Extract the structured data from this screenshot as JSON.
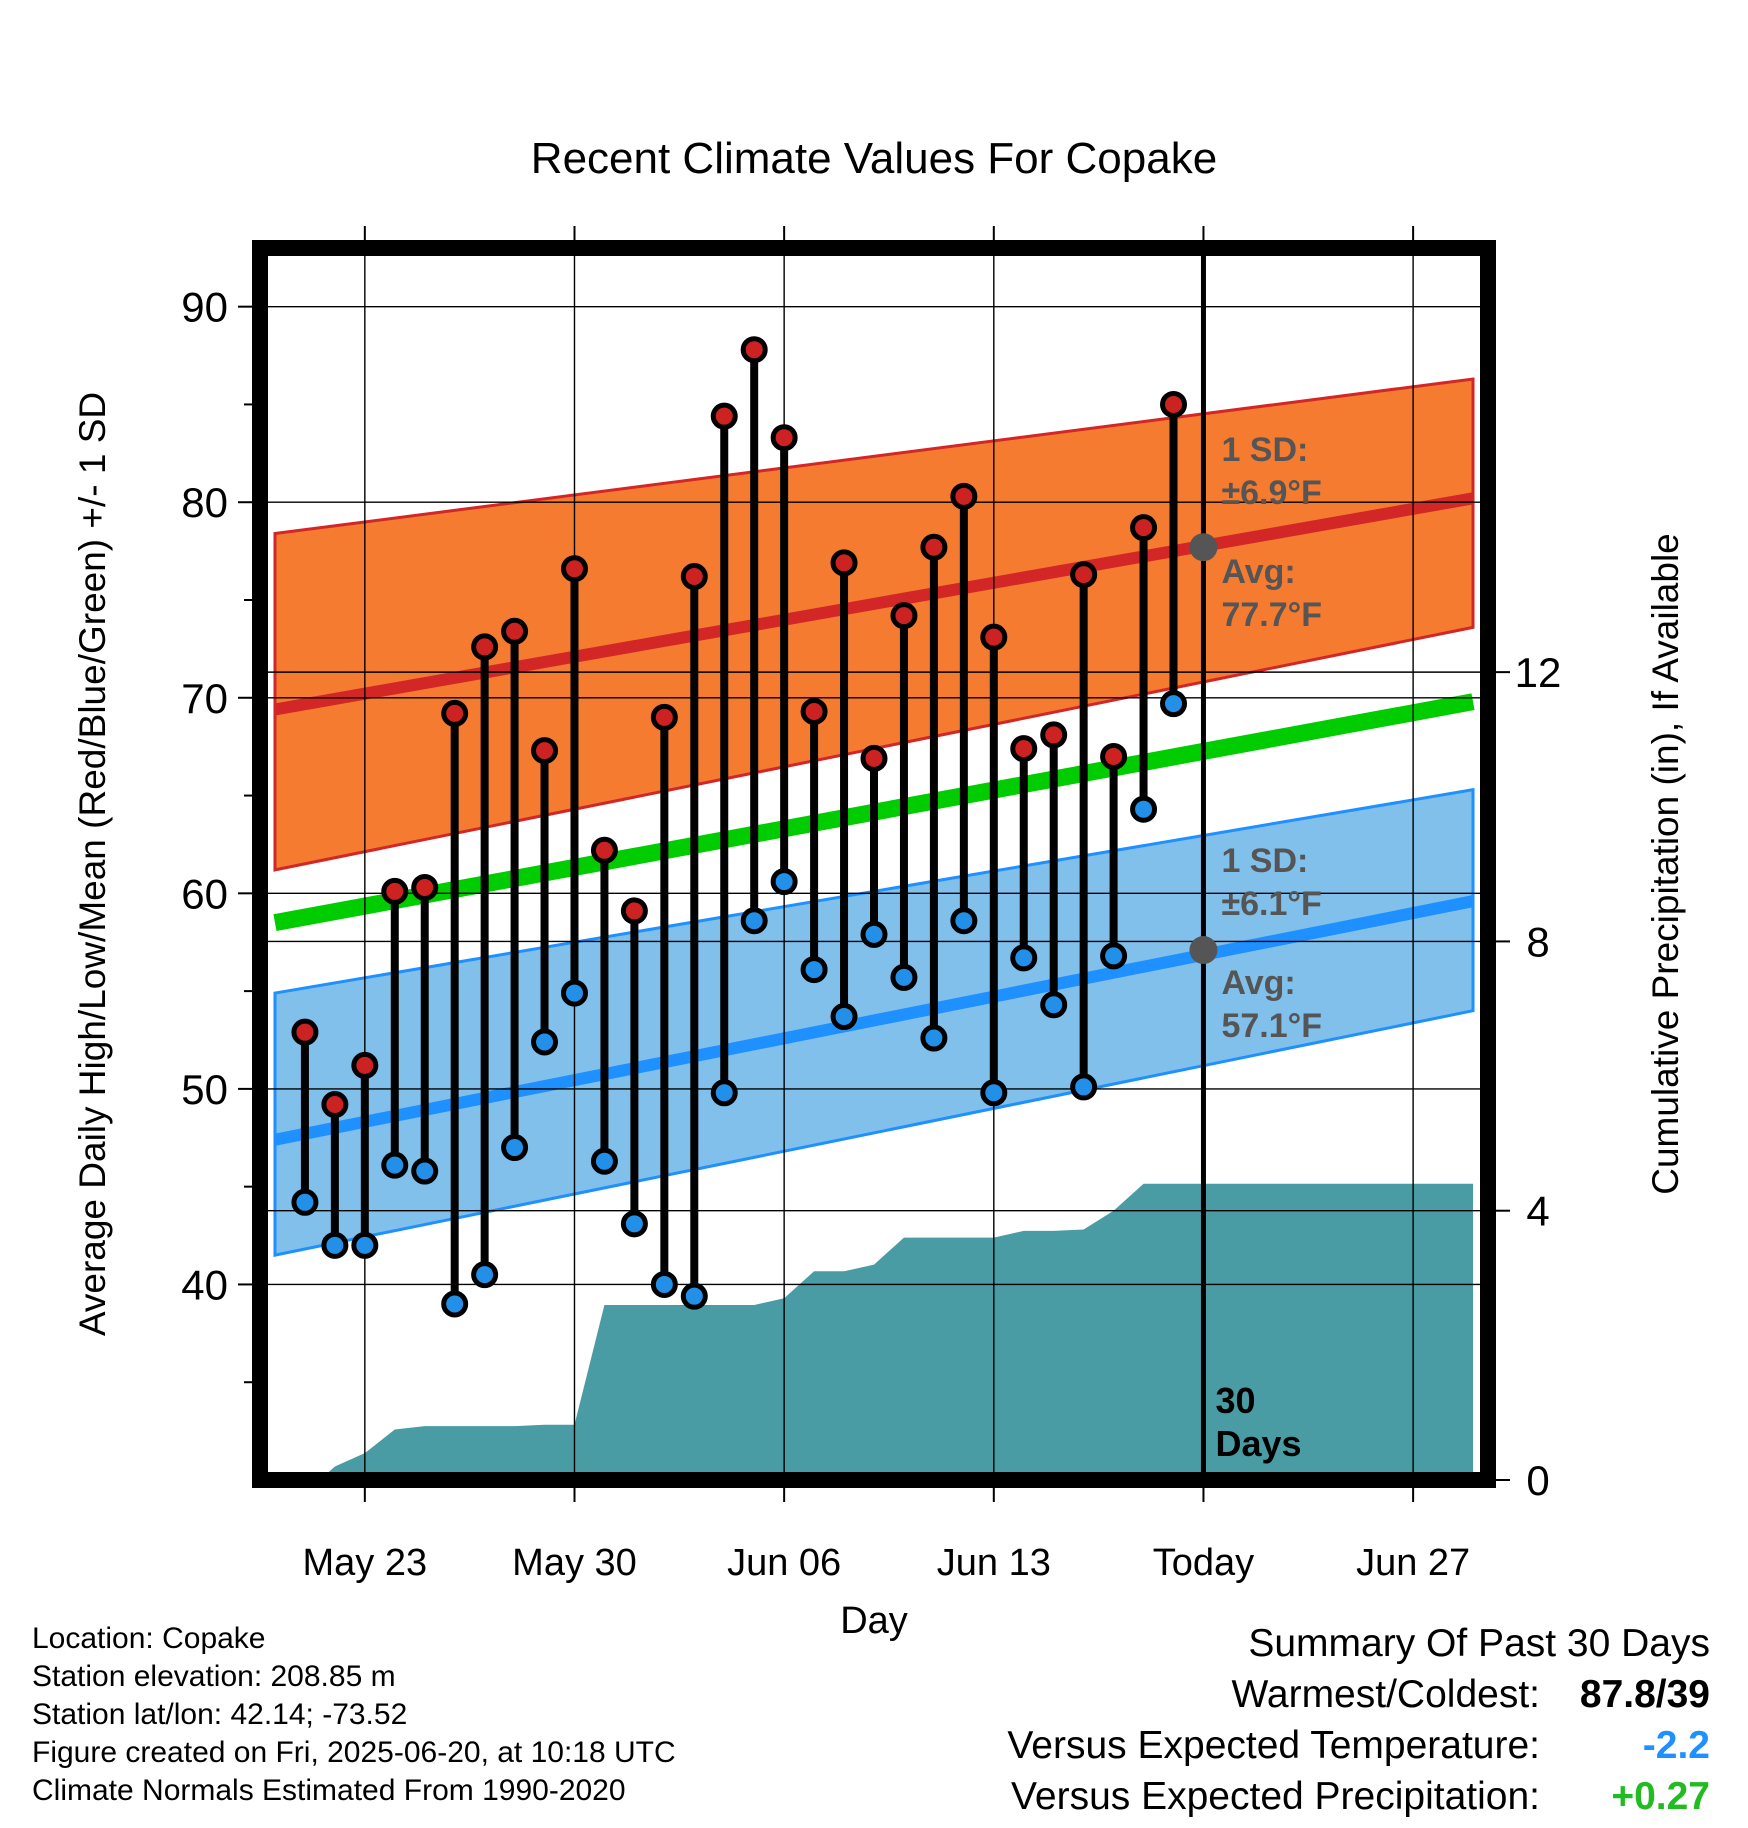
{
  "chart_data": {
    "type": "line",
    "title": "Recent Climate Values For Copake",
    "xlabel": "Day",
    "ylabel": "Average Daily High/Low/Mean (Red/Blue/Green) +/- 1 SD",
    "y2label": "Cumulative Precipitation (in), If Available",
    "ylim": [
      30,
      93
    ],
    "y2lim": [
      0,
      18.3
    ],
    "xlim": [
      -3.5,
      37.5
    ],
    "x_ticks": [
      {
        "x": 0,
        "label": "May 23"
      },
      {
        "x": 7,
        "label": "May 30"
      },
      {
        "x": 14,
        "label": "Jun 06"
      },
      {
        "x": 21,
        "label": "Jun 13"
      },
      {
        "x": 28,
        "label": "Today"
      },
      {
        "x": 35,
        "label": "Jun 27"
      }
    ],
    "y_ticks": [
      40,
      50,
      60,
      70,
      80,
      90
    ],
    "y2_ticks": [
      0,
      4,
      8,
      12
    ],
    "grid": true,
    "days": [
      -2,
      -1,
      0,
      1,
      2,
      3,
      4,
      5,
      6,
      7,
      8,
      9,
      10,
      11,
      12,
      13,
      14,
      15,
      16,
      17,
      18,
      19,
      20,
      21,
      22,
      23,
      24,
      25,
      26,
      27
    ],
    "highs": [
      52.9,
      49.2,
      51.2,
      60.1,
      60.3,
      69.2,
      72.6,
      73.4,
      67.3,
      76.6,
      62.2,
      59.1,
      69.0,
      76.2,
      84.4,
      87.8,
      83.3,
      69.3,
      76.9,
      66.9,
      74.2,
      77.7,
      80.3,
      73.1,
      67.4,
      68.1,
      76.3,
      67.0,
      78.7,
      85.0
    ],
    "lows": [
      44.2,
      42.0,
      42.0,
      46.1,
      45.8,
      39.0,
      40.5,
      47.0,
      52.4,
      54.9,
      46.3,
      43.1,
      40.0,
      39.4,
      49.8,
      58.6,
      60.6,
      56.1,
      53.7,
      57.9,
      55.7,
      52.6,
      58.6,
      49.8,
      56.7,
      54.3,
      50.1,
      56.8,
      64.3,
      69.7
    ],
    "normals": {
      "x": [
        -3,
        37
      ],
      "high_avg": [
        69.4,
        80.2
      ],
      "high_upper": [
        78.4,
        86.3
      ],
      "high_lower": [
        61.2,
        73.6
      ],
      "mean_avg": [
        58.5,
        69.8
      ],
      "low_avg": [
        47.4,
        59.6
      ],
      "low_upper": [
        54.9,
        65.3
      ],
      "low_lower": [
        41.5,
        54.0
      ]
    },
    "precip": {
      "x": [
        -3,
        -1.5,
        -1,
        0,
        1,
        2,
        3,
        4,
        5,
        6,
        7,
        8,
        9,
        10,
        11,
        12,
        13,
        14,
        15,
        16,
        17,
        18,
        19,
        20,
        21,
        22,
        23,
        24,
        25,
        26,
        27,
        37
      ],
      "y": [
        0,
        0,
        0.2,
        0.4,
        0.75,
        0.8,
        0.8,
        0.8,
        0.8,
        0.82,
        0.82,
        2.6,
        2.6,
        2.6,
        2.6,
        2.6,
        2.6,
        2.7,
        3.1,
        3.1,
        3.2,
        3.6,
        3.6,
        3.6,
        3.6,
        3.7,
        3.7,
        3.72,
        4.0,
        4.4,
        4.4,
        4.4
      ]
    },
    "annotations": {
      "high_sd": {
        "label": "1 SD:",
        "value": "±6.9°F"
      },
      "high_avg": {
        "label": "Avg:",
        "value": "77.7°F",
        "y": 77.7
      },
      "low_sd": {
        "label": "1 SD:",
        "value": "±6.1°F"
      },
      "low_avg": {
        "label": "Avg:",
        "value": "57.1°F",
        "y": 57.1
      },
      "days_label_1": "30",
      "days_label_2": "Days"
    },
    "colors": {
      "high_band": "#f47b30",
      "high_line": "#d32626",
      "mean_line": "#00cc00",
      "low_band": "#80c0ea",
      "low_line": "#1e90ff",
      "precip_fill": "#499ba4",
      "high_dot": "#cc2222",
      "low_dot": "#2290e8",
      "annotation_text": "#555555"
    }
  },
  "info": {
    "location": "Location: Copake",
    "elevation": "Station elevation: 208.85 m",
    "latlon": "Station lat/lon: 42.14; -73.52",
    "created": "Figure created on Fri, 2025-06-20, at 10:18 UTC",
    "normals": "Climate Normals Estimated From 1990-2020"
  },
  "summary": {
    "title": "Summary Of Past 30 Days",
    "warm_label": "Warmest/Coldest:",
    "warm_value": "87.8/39",
    "temp_label": "Versus Expected Temperature:",
    "temp_value": "-2.2",
    "temp_color": "#1e90ff",
    "precip_label": "Versus Expected Precipitation:",
    "precip_value": "+0.27",
    "precip_color": "#22bb22"
  }
}
